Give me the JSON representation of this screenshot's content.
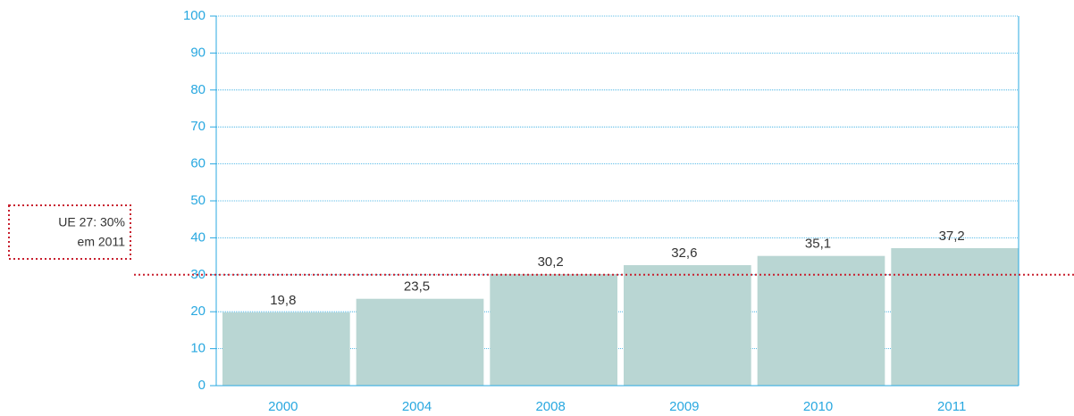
{
  "chart_data": {
    "type": "bar",
    "categories": [
      "2000",
      "2004",
      "2008",
      "2009",
      "2010",
      "2011"
    ],
    "values": [
      19.8,
      23.5,
      30.2,
      32.6,
      35.1,
      37.2
    ],
    "value_labels": [
      "19,8",
      "23,5",
      "30,2",
      "32,6",
      "35,1",
      "37,2"
    ],
    "color": "#b9d6d3",
    "axis_color": "#29a8e0",
    "ylim": [
      0,
      100
    ],
    "yticks": [
      0,
      10,
      20,
      30,
      40,
      50,
      60,
      70,
      80,
      90,
      100
    ],
    "grid": true,
    "reference_line": {
      "value": 30,
      "color": "#c8202f",
      "annotation": [
        "UE 27: 30%",
        "em 2011"
      ]
    }
  }
}
